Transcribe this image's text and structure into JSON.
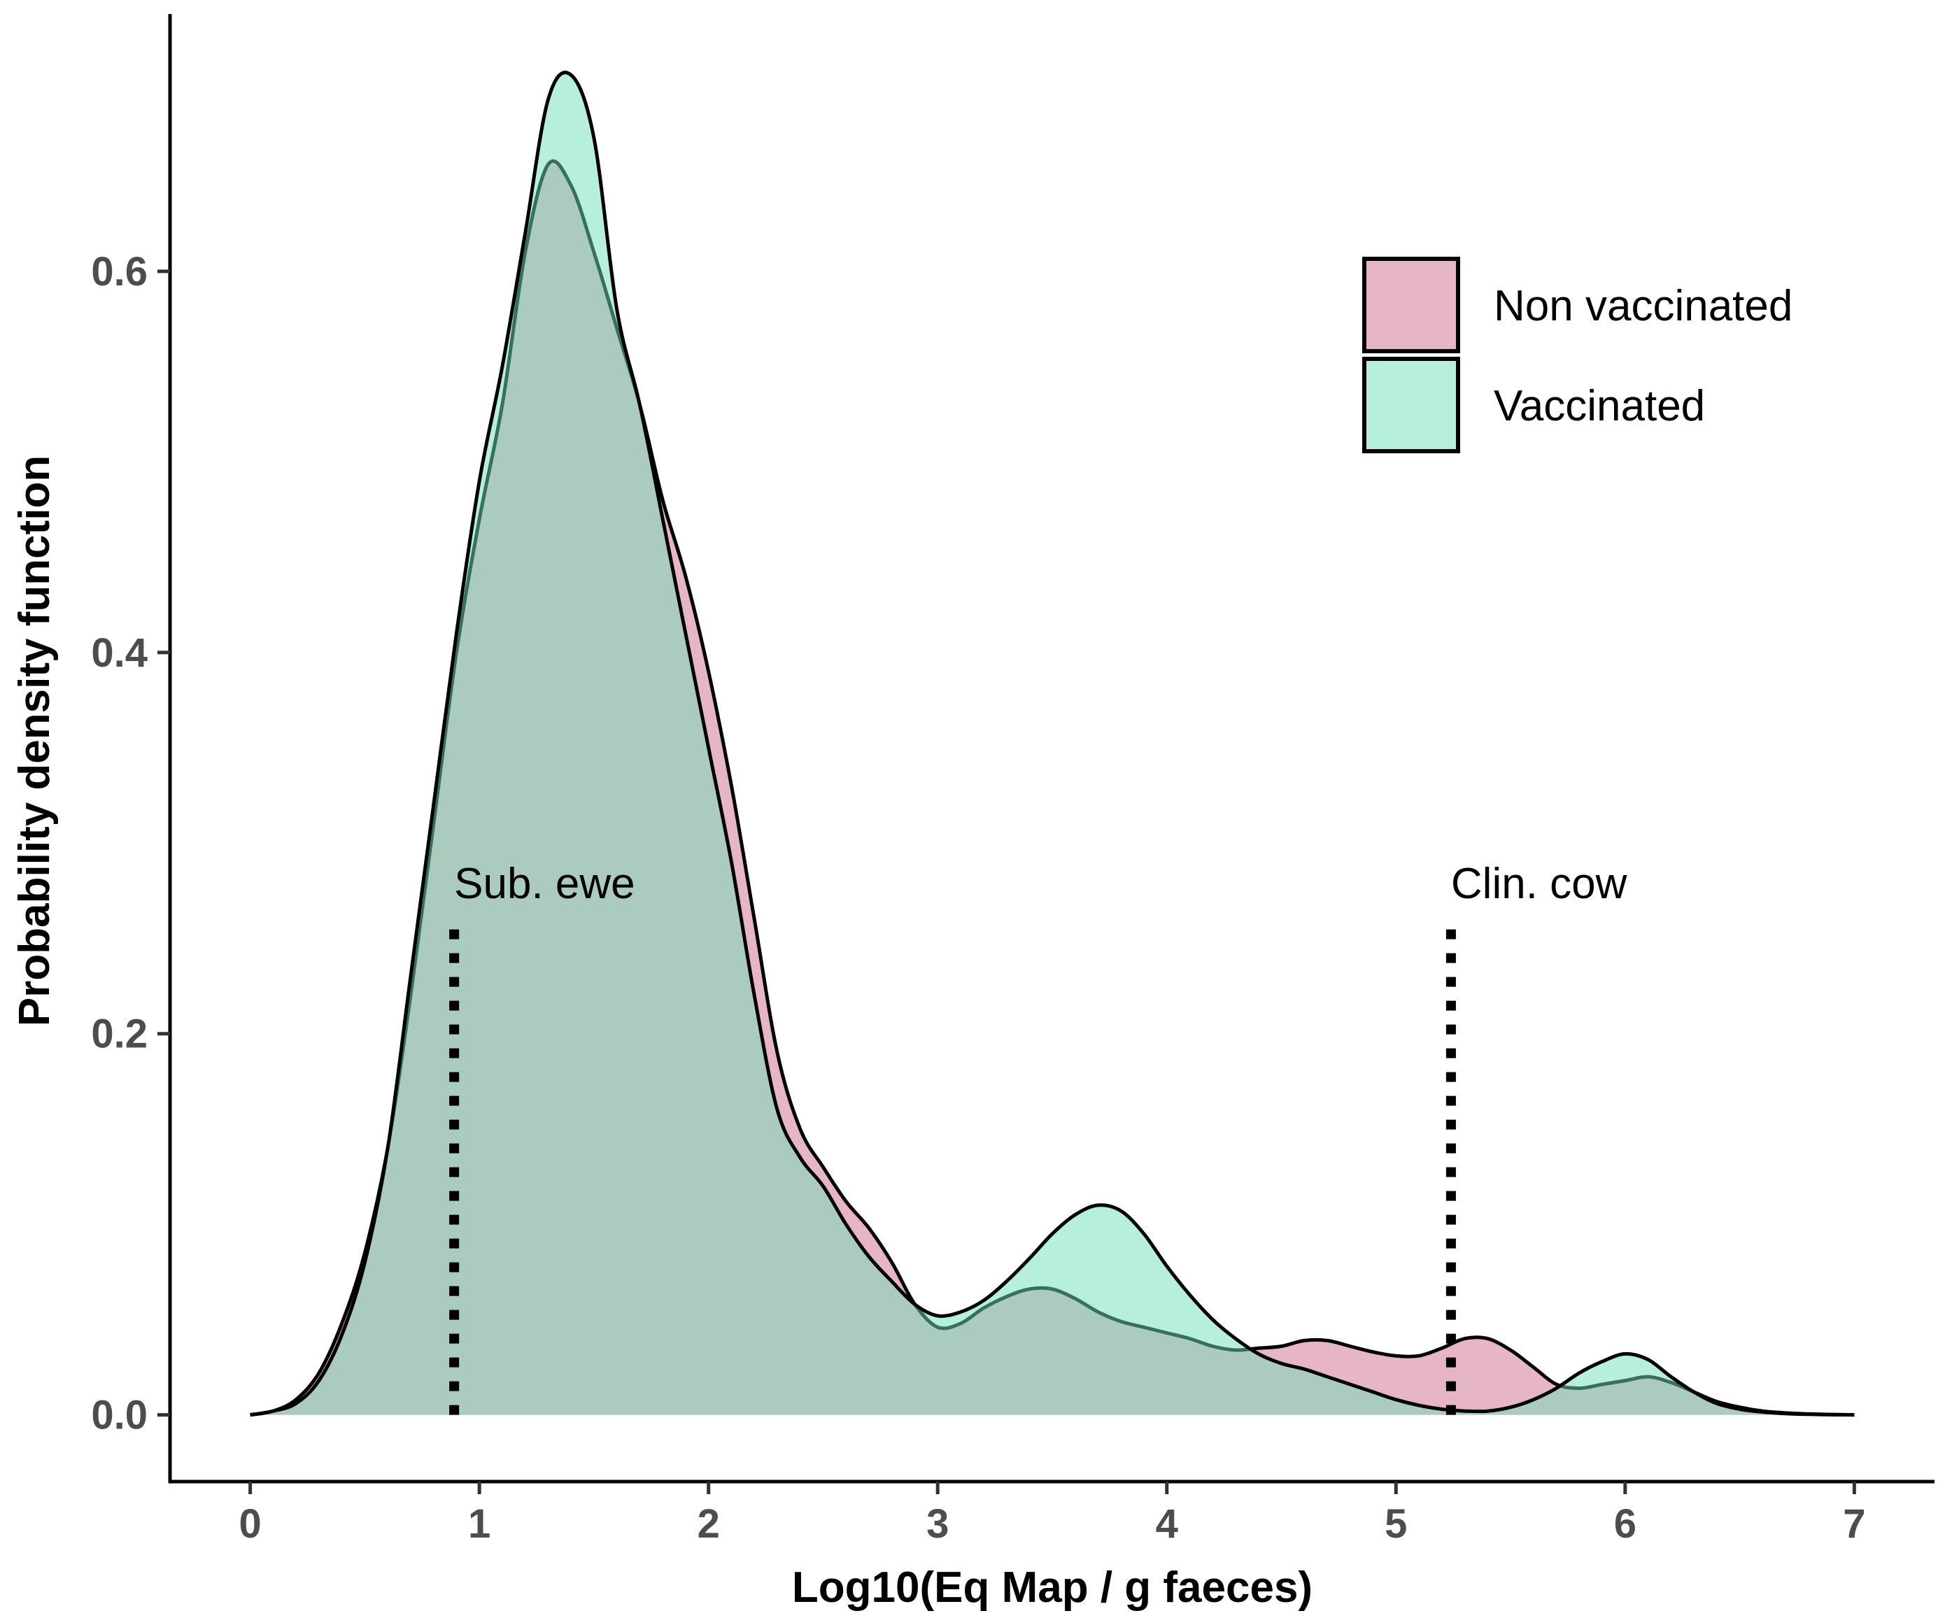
{
  "chart_data": {
    "type": "area",
    "title": "",
    "xlabel": "Log10(Eq Map / g faeces)",
    "ylabel": "Probability density function",
    "xlim": [
      -0.35,
      7.35
    ],
    "ylim": [
      -0.035,
      0.735
    ],
    "xticks": [
      0,
      1,
      2,
      3,
      4,
      5,
      6,
      7
    ],
    "yticks": [
      {
        "value": 0.0,
        "label": "0.0"
      },
      {
        "value": 0.2,
        "label": "0.2"
      },
      {
        "value": 0.4,
        "label": "0.4"
      },
      {
        "value": 0.6,
        "label": "0.6"
      }
    ],
    "grid": false,
    "legend_position": "top-right",
    "series": [
      {
        "name": "Non vaccinated",
        "color": "#cd6e8c",
        "points": [
          [
            0,
            0
          ],
          [
            0.1,
            0.002
          ],
          [
            0.2,
            0.008
          ],
          [
            0.3,
            0.022
          ],
          [
            0.4,
            0.048
          ],
          [
            0.5,
            0.085
          ],
          [
            0.6,
            0.14
          ],
          [
            0.7,
            0.22
          ],
          [
            0.8,
            0.31
          ],
          [
            0.9,
            0.4
          ],
          [
            1.0,
            0.47
          ],
          [
            1.1,
            0.53
          ],
          [
            1.2,
            0.61
          ],
          [
            1.3,
            0.656
          ],
          [
            1.4,
            0.645
          ],
          [
            1.5,
            0.61
          ],
          [
            1.6,
            0.57
          ],
          [
            1.7,
            0.53
          ],
          [
            1.8,
            0.48
          ],
          [
            1.9,
            0.44
          ],
          [
            2.0,
            0.39
          ],
          [
            2.1,
            0.33
          ],
          [
            2.2,
            0.26
          ],
          [
            2.3,
            0.19
          ],
          [
            2.4,
            0.15
          ],
          [
            2.5,
            0.13
          ],
          [
            2.6,
            0.112
          ],
          [
            2.7,
            0.098
          ],
          [
            2.8,
            0.08
          ],
          [
            2.9,
            0.058
          ],
          [
            3.0,
            0.046
          ],
          [
            3.1,
            0.048
          ],
          [
            3.2,
            0.056
          ],
          [
            3.3,
            0.062
          ],
          [
            3.4,
            0.066
          ],
          [
            3.5,
            0.066
          ],
          [
            3.6,
            0.061
          ],
          [
            3.7,
            0.054
          ],
          [
            3.8,
            0.049
          ],
          [
            3.9,
            0.046
          ],
          [
            4.0,
            0.043
          ],
          [
            4.1,
            0.04
          ],
          [
            4.2,
            0.036
          ],
          [
            4.3,
            0.034
          ],
          [
            4.4,
            0.035
          ],
          [
            4.5,
            0.036
          ],
          [
            4.6,
            0.039
          ],
          [
            4.7,
            0.039
          ],
          [
            4.8,
            0.036
          ],
          [
            4.9,
            0.033
          ],
          [
            5.0,
            0.031
          ],
          [
            5.1,
            0.031
          ],
          [
            5.2,
            0.035
          ],
          [
            5.3,
            0.04
          ],
          [
            5.4,
            0.04
          ],
          [
            5.5,
            0.034
          ],
          [
            5.6,
            0.025
          ],
          [
            5.7,
            0.016
          ],
          [
            5.8,
            0.014
          ],
          [
            5.9,
            0.016
          ],
          [
            6.0,
            0.018
          ],
          [
            6.1,
            0.02
          ],
          [
            6.2,
            0.017
          ],
          [
            6.3,
            0.012
          ],
          [
            6.4,
            0.007
          ],
          [
            6.5,
            0.004
          ],
          [
            6.6,
            0.002
          ],
          [
            6.7,
            0.001
          ],
          [
            6.8,
            0.0005
          ],
          [
            6.9,
            0.0002
          ],
          [
            7.0,
            0
          ]
        ]
      },
      {
        "name": "Vaccinated",
        "color": "#6de0b8",
        "points": [
          [
            0,
            0
          ],
          [
            0.1,
            0.002
          ],
          [
            0.2,
            0.006
          ],
          [
            0.3,
            0.018
          ],
          [
            0.4,
            0.042
          ],
          [
            0.5,
            0.08
          ],
          [
            0.6,
            0.14
          ],
          [
            0.7,
            0.23
          ],
          [
            0.8,
            0.32
          ],
          [
            0.9,
            0.41
          ],
          [
            1.0,
            0.49
          ],
          [
            1.1,
            0.55
          ],
          [
            1.2,
            0.62
          ],
          [
            1.3,
            0.69
          ],
          [
            1.4,
            0.703
          ],
          [
            1.5,
            0.67
          ],
          [
            1.6,
            0.58
          ],
          [
            1.7,
            0.53
          ],
          [
            1.8,
            0.47
          ],
          [
            1.9,
            0.41
          ],
          [
            2.0,
            0.35
          ],
          [
            2.1,
            0.29
          ],
          [
            2.2,
            0.22
          ],
          [
            2.3,
            0.16
          ],
          [
            2.4,
            0.135
          ],
          [
            2.5,
            0.12
          ],
          [
            2.6,
            0.1
          ],
          [
            2.7,
            0.083
          ],
          [
            2.8,
            0.07
          ],
          [
            2.9,
            0.058
          ],
          [
            3.0,
            0.052
          ],
          [
            3.1,
            0.054
          ],
          [
            3.2,
            0.06
          ],
          [
            3.3,
            0.07
          ],
          [
            3.4,
            0.082
          ],
          [
            3.5,
            0.095
          ],
          [
            3.6,
            0.105
          ],
          [
            3.7,
            0.11
          ],
          [
            3.8,
            0.107
          ],
          [
            3.9,
            0.095
          ],
          [
            4.0,
            0.078
          ],
          [
            4.1,
            0.063
          ],
          [
            4.2,
            0.05
          ],
          [
            4.3,
            0.04
          ],
          [
            4.4,
            0.032
          ],
          [
            4.5,
            0.027
          ],
          [
            4.6,
            0.024
          ],
          [
            4.7,
            0.02
          ],
          [
            4.8,
            0.016
          ],
          [
            4.9,
            0.012
          ],
          [
            5.0,
            0.008
          ],
          [
            5.1,
            0.005
          ],
          [
            5.2,
            0.003
          ],
          [
            5.3,
            0.002
          ],
          [
            5.4,
            0.002
          ],
          [
            5.5,
            0.004
          ],
          [
            5.6,
            0.008
          ],
          [
            5.7,
            0.014
          ],
          [
            5.8,
            0.022
          ],
          [
            5.9,
            0.028
          ],
          [
            6.0,
            0.032
          ],
          [
            6.1,
            0.029
          ],
          [
            6.2,
            0.02
          ],
          [
            6.3,
            0.012
          ],
          [
            6.4,
            0.006
          ],
          [
            6.5,
            0.003
          ],
          [
            6.6,
            0.0015
          ],
          [
            6.7,
            0.0007
          ],
          [
            6.8,
            0.0003
          ],
          [
            6.9,
            0.0001
          ],
          [
            7.0,
            0
          ]
        ]
      }
    ],
    "reference_lines": [
      {
        "label": "Sub. ewe",
        "x": 0.89,
        "y_top": 0.26
      },
      {
        "label": "Clin. cow",
        "x": 5.24,
        "y_top": 0.26
      }
    ]
  }
}
